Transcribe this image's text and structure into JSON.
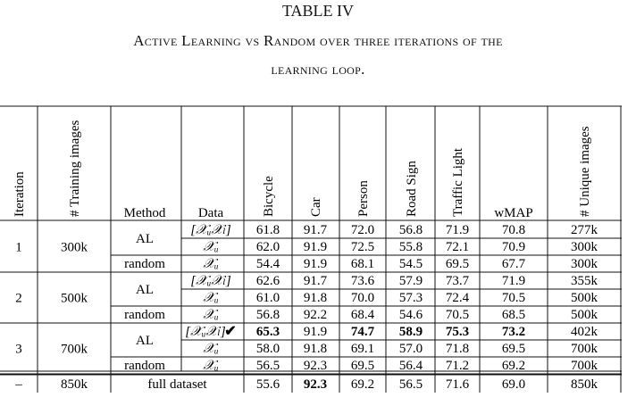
{
  "caption": {
    "number": "TABLE IV",
    "line1": "Active Learning vs Random over three iterations of the",
    "line2": "learning loop."
  },
  "header": [
    "Iteration",
    "# Training images",
    "Method",
    "Data",
    "Bicycle",
    "Car",
    "Person",
    "Road Sign",
    "Traffic Light",
    "wMAP",
    "# Unique images"
  ],
  "groups": [
    {
      "iteration": "1",
      "training": "300k",
      "rows": [
        {
          "method": "AL",
          "data": "[𝒳ᵤ𝒳ₗ]",
          "check": false,
          "values": [
            "61.8",
            "91.7",
            "72.0",
            "56.8",
            "71.9",
            "70.8"
          ],
          "unique": "277k",
          "bold": []
        },
        {
          "method": "",
          "data": "𝒳ᵤ",
          "check": false,
          "values": [
            "62.0",
            "91.9",
            "72.5",
            "55.8",
            "72.1",
            "70.9"
          ],
          "unique": "300k",
          "bold": []
        },
        {
          "method": "random",
          "data": "𝒳ᵤ",
          "check": false,
          "values": [
            "54.4",
            "91.9",
            "68.1",
            "54.5",
            "69.5",
            "67.7"
          ],
          "unique": "300k",
          "bold": []
        }
      ]
    },
    {
      "iteration": "2",
      "training": "500k",
      "rows": [
        {
          "method": "AL",
          "data": "[𝒳ᵤ𝒳ₗ]",
          "check": false,
          "values": [
            "62.6",
            "91.7",
            "73.6",
            "57.9",
            "73.7",
            "71.9"
          ],
          "unique": "355k",
          "bold": []
        },
        {
          "method": "",
          "data": "𝒳ᵤ",
          "check": false,
          "values": [
            "61.0",
            "91.8",
            "70.0",
            "57.3",
            "72.4",
            "70.5"
          ],
          "unique": "500k",
          "bold": []
        },
        {
          "method": "random",
          "data": "𝒳ᵤ",
          "check": false,
          "values": [
            "56.8",
            "92.2",
            "68.4",
            "54.6",
            "70.5",
            "68.5"
          ],
          "unique": "500k",
          "bold": []
        }
      ]
    },
    {
      "iteration": "3",
      "training": "700k",
      "rows": [
        {
          "method": "AL",
          "data": "[𝒳ᵤ𝒳ₗ]",
          "check": true,
          "values": [
            "65.3",
            "91.9",
            "74.7",
            "58.9",
            "75.3",
            "73.2"
          ],
          "unique": "402k",
          "bold": [
            0,
            2,
            3,
            4,
            5
          ]
        },
        {
          "method": "",
          "data": "𝒳ᵤ",
          "check": false,
          "values": [
            "58.0",
            "91.8",
            "69.1",
            "57.0",
            "71.8",
            "69.5"
          ],
          "unique": "700k",
          "bold": []
        },
        {
          "method": "random",
          "data": "𝒳ᵤ",
          "check": false,
          "values": [
            "56.5",
            "92.3",
            "69.5",
            "56.4",
            "71.2",
            "69.2"
          ],
          "unique": "700k",
          "bold": []
        }
      ]
    }
  ],
  "footer": {
    "iteration": "–",
    "training": "850k",
    "data": "full dataset",
    "values": [
      "55.6",
      "92.3",
      "69.2",
      "56.5",
      "71.6",
      "69.0"
    ],
    "unique": "850k",
    "bold": [
      1
    ]
  },
  "check_mark": "✔"
}
